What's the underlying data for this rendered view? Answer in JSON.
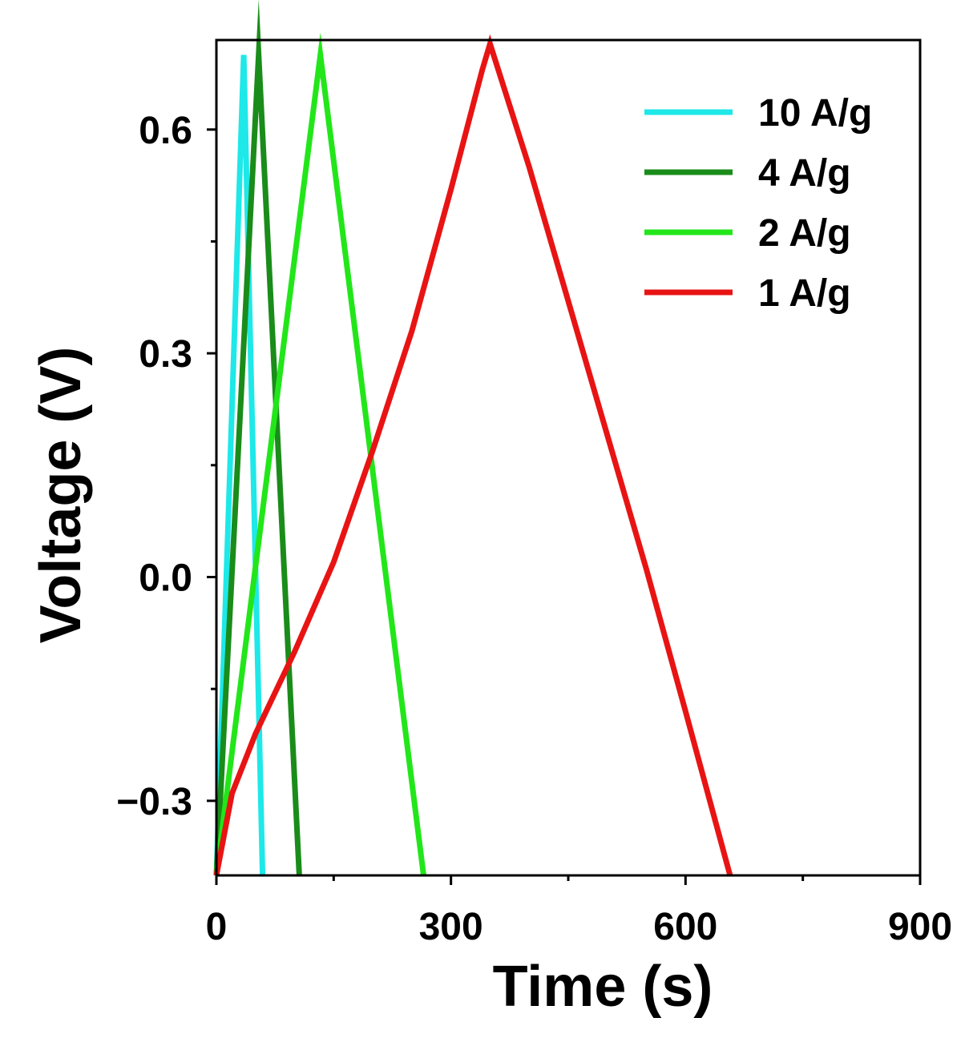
{
  "chart_data": {
    "type": "line",
    "title": "",
    "xlabel": "Time (s)",
    "ylabel": "Voltage  (V)",
    "xlim": [
      0,
      900
    ],
    "ylim": [
      -0.4,
      0.72
    ],
    "x_ticks": [
      0,
      300,
      600,
      900
    ],
    "x_tick_labels": [
      "0",
      "300",
      "600",
      "900"
    ],
    "x_minor_ticks": [
      150,
      450,
      750
    ],
    "y_ticks": [
      -0.3,
      0.0,
      0.3,
      0.6
    ],
    "y_tick_labels": [
      "−0.3",
      "0.0",
      "0.3",
      "0.6"
    ],
    "y_minor_ticks": [
      -0.15,
      0.15,
      0.45
    ],
    "grid": false,
    "legend_position": "top-right",
    "series": [
      {
        "name": "10 A/g",
        "color": "#1EE8E8",
        "x": [
          0,
          35,
          59
        ],
        "y": [
          -0.4,
          0.7,
          -0.4
        ]
      },
      {
        "name": "4 A/g",
        "color": "#1A8C1A",
        "x": [
          0,
          54,
          106
        ],
        "y": [
          -0.4,
          0.7,
          -0.4
        ]
      },
      {
        "name": "2 A/g",
        "color": "#22E61A",
        "x": [
          0,
          133,
          265
        ],
        "y": [
          -0.4,
          0.7,
          -0.4
        ]
      },
      {
        "name": "1 A/g",
        "color": "#E81414",
        "x": [
          0,
          20,
          50,
          100,
          150,
          200,
          250,
          300,
          340,
          350,
          400,
          450,
          500,
          550,
          600,
          657
        ],
        "y": [
          -0.4,
          -0.29,
          -0.21,
          -0.1,
          0.02,
          0.17,
          0.33,
          0.52,
          0.68,
          0.715,
          0.55,
          0.37,
          0.19,
          0.01,
          -0.18,
          -0.4
        ]
      }
    ]
  }
}
